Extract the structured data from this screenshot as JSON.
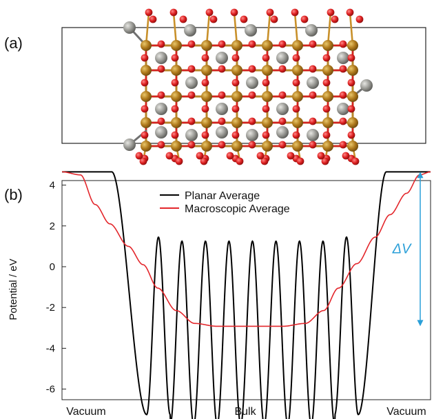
{
  "panels": {
    "a": "(a)",
    "b": "(b)"
  },
  "chart_data": {
    "type": "line",
    "title": "",
    "xlabel": "",
    "ylabel": "Potential / eV",
    "ylim": [
      -7.9,
      4.8
    ],
    "yticks": [
      4,
      2,
      0,
      -2,
      -4,
      -6
    ],
    "ytick_labels": [
      "4",
      "2",
      "0",
      "-2",
      "-4",
      "-6"
    ],
    "x_region_labels": [
      "Vacuum",
      "Bulk",
      "Vacuum"
    ],
    "legend": {
      "placement": "top-center",
      "entries": [
        "Planar Average",
        "Macroscopic Average"
      ]
    },
    "series": [
      {
        "name": "Planar Average",
        "color": "#000000",
        "vacuum_level": 4.65,
        "oscillation_count": 9,
        "peak_values": [
          1.45,
          1.25,
          1.25,
          1.25,
          1.25,
          1.25,
          1.25,
          1.25,
          1.45
        ],
        "trough_values": [
          -7.25,
          -7.75,
          -7.75,
          -7.75,
          -7.75,
          -7.75,
          -7.75,
          -7.75,
          -7.25
        ]
      },
      {
        "name": "Macroscopic Average",
        "color": "#e3262b",
        "vacuum_level": 4.65,
        "bulk_level": -2.92
      }
    ],
    "annotation": {
      "text": "ΔV",
      "color": "#2a9fd8",
      "from_value": 4.65,
      "to_value": -2.92
    }
  },
  "structure": {
    "atoms": {
      "oxygen_color": "#d91f1f",
      "metal_color": "#8c8c86",
      "linker_color": "#b17d1e"
    }
  }
}
